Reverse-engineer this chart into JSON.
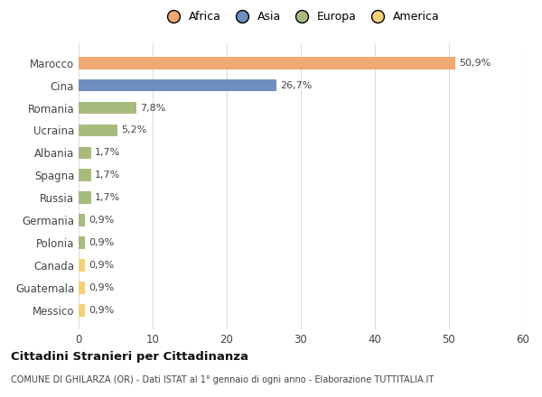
{
  "categories": [
    "Marocco",
    "Cina",
    "Romania",
    "Ucraina",
    "Albania",
    "Spagna",
    "Russia",
    "Germania",
    "Polonia",
    "Canada",
    "Guatemala",
    "Messico"
  ],
  "values": [
    50.9,
    26.7,
    7.8,
    5.2,
    1.7,
    1.7,
    1.7,
    0.9,
    0.9,
    0.9,
    0.9,
    0.9
  ],
  "labels": [
    "50,9%",
    "26,7%",
    "7,8%",
    "5,2%",
    "1,7%",
    "1,7%",
    "1,7%",
    "0,9%",
    "0,9%",
    "0,9%",
    "0,9%",
    "0,9%"
  ],
  "colors": [
    "#f0a875",
    "#6e8fc0",
    "#a8bb7e",
    "#a8bb7e",
    "#a8bb7e",
    "#a8bb7e",
    "#a8bb7e",
    "#a8bb7e",
    "#a8bb7e",
    "#f5d07a",
    "#f5d07a",
    "#f5d07a"
  ],
  "legend": [
    {
      "label": "Africa",
      "color": "#f0a875"
    },
    {
      "label": "Asia",
      "color": "#6e8fc0"
    },
    {
      "label": "Europa",
      "color": "#a8bb7e"
    },
    {
      "label": "America",
      "color": "#f5d07a"
    }
  ],
  "xlim": [
    0,
    60
  ],
  "xticks": [
    0,
    10,
    20,
    30,
    40,
    50,
    60
  ],
  "title": "Cittadini Stranieri per Cittadinanza",
  "subtitle": "COMUNE DI GHILARZA (OR) - Dati ISTAT al 1° gennaio di ogni anno - Elaborazione TUTTITALIA.IT",
  "background_color": "#ffffff",
  "grid_color": "#dddddd"
}
